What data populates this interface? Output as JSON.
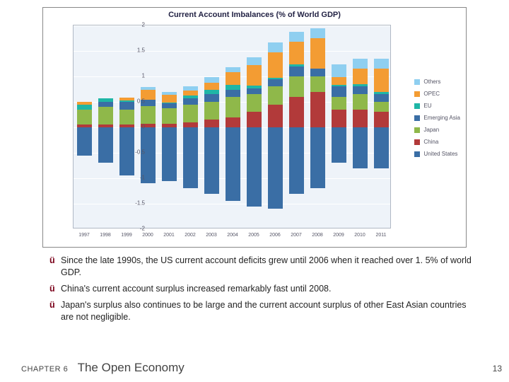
{
  "chart": {
    "type": "stacked-bar-diverging",
    "title": "Current Account Imbalances (% of World GDP)",
    "title_color": "#1a1a50",
    "title_fontsize": 11,
    "background_color": "#ffffff",
    "plot_background_color": "#eef3f9",
    "grid_color": "#ffffff",
    "border_color": "#b0b8c4",
    "ylim": [
      -2,
      2
    ],
    "ytick_step": 0.5,
    "yticks": [
      -2,
      -1.5,
      -1,
      -0.5,
      0,
      0.5,
      1,
      1.5,
      2
    ],
    "bar_width": 0.7,
    "years": [
      "1997",
      "1998",
      "1999",
      "2000",
      "2001",
      "2002",
      "2003",
      "2004",
      "2005",
      "2006",
      "2007",
      "2008",
      "2009",
      "2010",
      "2011"
    ],
    "series": [
      {
        "name": "Others",
        "label": "Others",
        "color": "#8fcff0"
      },
      {
        "name": "OPEC",
        "label": "OPEC",
        "color": "#f39c33"
      },
      {
        "name": "EU",
        "label": "EU",
        "color": "#1fb6a6"
      },
      {
        "name": "Emerging Asia",
        "label": "Emerging Asia",
        "color": "#3a6ea5"
      },
      {
        "name": "Japan",
        "label": "Japan",
        "color": "#8fb84a"
      },
      {
        "name": "China",
        "label": "China",
        "color": "#b23a3a"
      },
      {
        "name": "United States",
        "label": "United States",
        "color": "#3a6ea5"
      }
    ],
    "positive_order": [
      "China",
      "Japan",
      "Emerging Asia",
      "EU",
      "OPEC",
      "Others"
    ],
    "negative_order": [
      "United States",
      "Emerging Asia"
    ],
    "data": {
      "China": [
        0.05,
        0.05,
        0.05,
        0.07,
        0.07,
        0.1,
        0.15,
        0.2,
        0.3,
        0.45,
        0.6,
        0.7,
        0.35,
        0.35,
        0.3
      ],
      "Japan": [
        0.3,
        0.35,
        0.3,
        0.35,
        0.3,
        0.35,
        0.35,
        0.4,
        0.35,
        0.35,
        0.4,
        0.3,
        0.25,
        0.3,
        0.2
      ],
      "Emerging Asia_pos": [
        0.0,
        0.1,
        0.15,
        0.12,
        0.1,
        0.12,
        0.15,
        0.13,
        0.12,
        0.15,
        0.2,
        0.15,
        0.2,
        0.15,
        0.15
      ],
      "EU": [
        0.1,
        0.07,
        0.03,
        0.0,
        0.02,
        0.05,
        0.08,
        0.1,
        0.05,
        0.02,
        0.03,
        0.0,
        0.03,
        0.05,
        0.05
      ],
      "OPEC": [
        0.05,
        0.0,
        0.05,
        0.2,
        0.15,
        0.1,
        0.15,
        0.25,
        0.4,
        0.5,
        0.45,
        0.6,
        0.15,
        0.3,
        0.45
      ],
      "Others": [
        0.0,
        0.0,
        0.0,
        0.05,
        0.05,
        0.08,
        0.1,
        0.1,
        0.15,
        0.2,
        0.2,
        0.2,
        0.25,
        0.2,
        0.2
      ],
      "United States": [
        -0.45,
        -0.7,
        -0.95,
        -1.1,
        -1.05,
        -1.2,
        -1.3,
        -1.45,
        -1.55,
        -1.6,
        -1.3,
        -1.2,
        -0.7,
        -0.8,
        -0.8
      ],
      "Emerging Asia_neg": [
        -0.1,
        0.0,
        0.0,
        0.0,
        0.0,
        0.0,
        0.0,
        0.0,
        0.0,
        0.0,
        0.0,
        0.0,
        0.0,
        0.0,
        0.0
      ]
    }
  },
  "notes": {
    "check_symbol": "ü",
    "check_font": "Wingdings-like",
    "items": [
      "Since the late 1990s, the US current account deficits grew until 2006 when it reached over 1. 5% of world GDP.",
      "China's current account surplus increased remarkably fast until 2008.",
      "Japan's surplus also continues to be large and the current account surplus of other East Asian countries are not negligible."
    ]
  },
  "footer": {
    "chapter_label": "CHAPTER 6",
    "book_title": "The Open Economy",
    "page_number": "13"
  },
  "colors": {
    "text_body": "#222222",
    "check_mark": "#7a0019",
    "footer_text": "#444444"
  }
}
